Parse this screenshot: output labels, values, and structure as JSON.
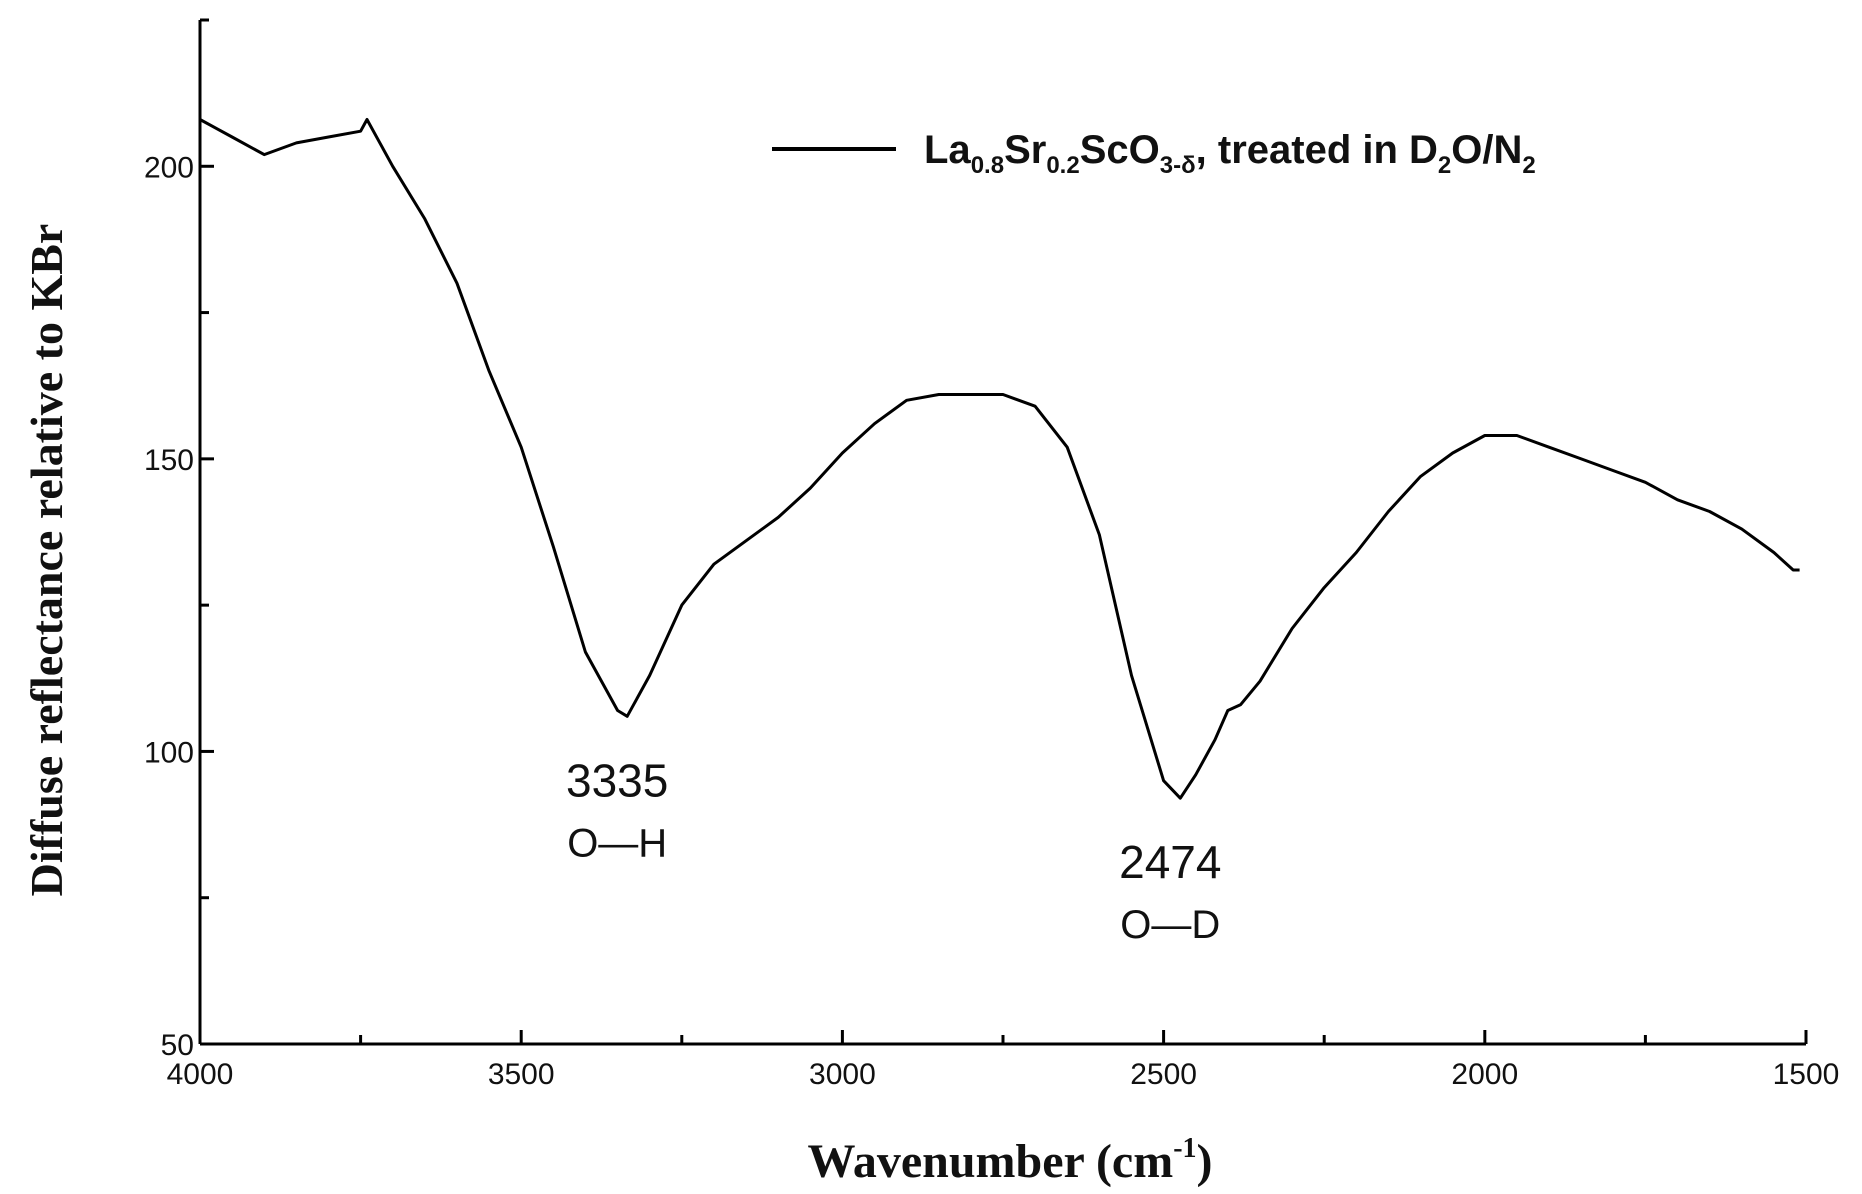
{
  "chart_data": {
    "type": "line",
    "xlabel": "Wavenumber (cm",
    "xlabel_sup": "-1",
    "xlabel_end": ")",
    "ylabel": "Diffuse reflectance relative to KBr",
    "xlim": [
      4000,
      1500
    ],
    "ylim": [
      50,
      225
    ],
    "x_reversed": true,
    "x_ticks": [
      4000,
      3500,
      3000,
      2500,
      2000,
      1500
    ],
    "y_ticks": [
      50,
      100,
      150,
      200
    ],
    "grid": false,
    "legend_position": "top-right",
    "series": [
      {
        "name": "La0.8Sr0.2ScO3-δ, treated in D2O/N2",
        "color": "#000000",
        "x": [
          4000,
          3950,
          3900,
          3850,
          3800,
          3750,
          3740,
          3700,
          3650,
          3600,
          3550,
          3500,
          3450,
          3400,
          3350,
          3335,
          3300,
          3250,
          3200,
          3150,
          3100,
          3050,
          3000,
          2950,
          2900,
          2850,
          2800,
          2750,
          2700,
          2650,
          2600,
          2550,
          2500,
          2474,
          2450,
          2420,
          2400,
          2380,
          2350,
          2300,
          2250,
          2200,
          2150,
          2100,
          2050,
          2000,
          1950,
          1900,
          1850,
          1800,
          1750,
          1700,
          1650,
          1600,
          1550,
          1520,
          1510
        ],
        "y": [
          208,
          205,
          202,
          204,
          205,
          206,
          208,
          200,
          191,
          180,
          165,
          152,
          135,
          117,
          107,
          106,
          113,
          125,
          132,
          136,
          140,
          145,
          151,
          156,
          160,
          161,
          161,
          161,
          159,
          152,
          137,
          113,
          95,
          92,
          96,
          102,
          107,
          108,
          112,
          121,
          128,
          134,
          141,
          147,
          151,
          154,
          154,
          152,
          150,
          148,
          146,
          143,
          141,
          138,
          134,
          131,
          131
        ]
      }
    ],
    "legend": {
      "prefix": "La",
      "s1": "0.8",
      "p2": "Sr",
      "s2": "0.2",
      "p3": "ScO",
      "s3": "3-δ",
      "p4": ", treated in D",
      "s4": "2",
      "p5": "O/N",
      "s5": "2"
    },
    "annotations": [
      {
        "x": 3335,
        "y": 106,
        "value": "3335",
        "label": "O—H"
      },
      {
        "x": 2474,
        "y": 92,
        "value": "2474",
        "label": "O—D"
      }
    ]
  }
}
